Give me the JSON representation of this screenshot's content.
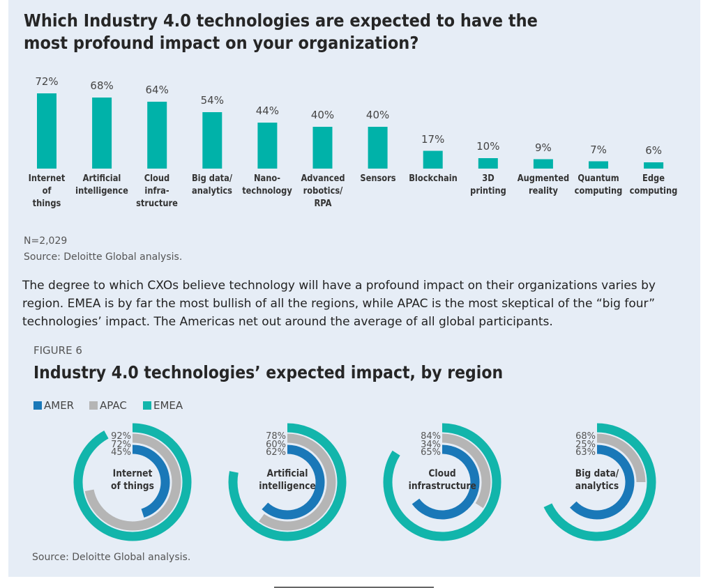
{
  "chart_data": [
    {
      "type": "bar",
      "title": "Which Industry 4.0 technologies are expected to have the most profound impact on your organization?",
      "categories": [
        "Internet\nof\nthings",
        "Artificial\nintelligence",
        "Cloud\ninfra-\nstructure",
        "Big data/\nanalytics",
        "Nano-\ntechnology",
        "Advanced\nrobotics/\nRPA",
        "Sensors",
        "Blockchain",
        "3D\nprinting",
        "Augmented\nreality",
        "Quantum\ncomputing",
        "Edge\ncomputing"
      ],
      "values": [
        72,
        68,
        64,
        54,
        44,
        40,
        40,
        17,
        10,
        9,
        7,
        6
      ],
      "value_labels": [
        "72%",
        "68%",
        "64%",
        "54%",
        "44%",
        "40%",
        "40%",
        "17%",
        "10%",
        "9%",
        "7%",
        "6%"
      ],
      "color": "#00b2a9",
      "note": "N=2,029",
      "source": "Source: Deloitte Global analysis."
    },
    {
      "type": "radial-bar",
      "figure": "FIGURE 6",
      "title": "Industry 4.0 technologies’ expected impact, by region",
      "categories": [
        "Internet\nof things",
        "Artificial\nintelligence",
        "Cloud\ninfrastructure",
        "Big data/\nanalytics"
      ],
      "series": [
        {
          "name": "AMER",
          "color": "#1a78b8",
          "values": [
            45,
            62,
            65,
            63
          ],
          "value_labels": [
            "45%",
            "62%",
            "65%",
            "63%"
          ]
        },
        {
          "name": "APAC",
          "color": "#b5b5b5",
          "values": [
            72,
            60,
            34,
            25
          ],
          "value_labels": [
            "72%",
            "60%",
            "34%",
            "25%"
          ]
        },
        {
          "name": "EMEA",
          "color": "#12b5ab",
          "values": [
            92,
            78,
            84,
            68
          ],
          "value_labels": [
            "92%",
            "78%",
            "84%",
            "68%"
          ]
        }
      ],
      "source": "Source: Deloitte Global analysis."
    }
  ],
  "body": {
    "paragraph": "The degree to which CXOs believe technology will have a profound impact on their organizations varies by region. EMEA is by far the most bullish of all the regions, while APAC is the most skeptical of the “big four” technologies’ impact. The Americas net out around the average of all global participants."
  }
}
